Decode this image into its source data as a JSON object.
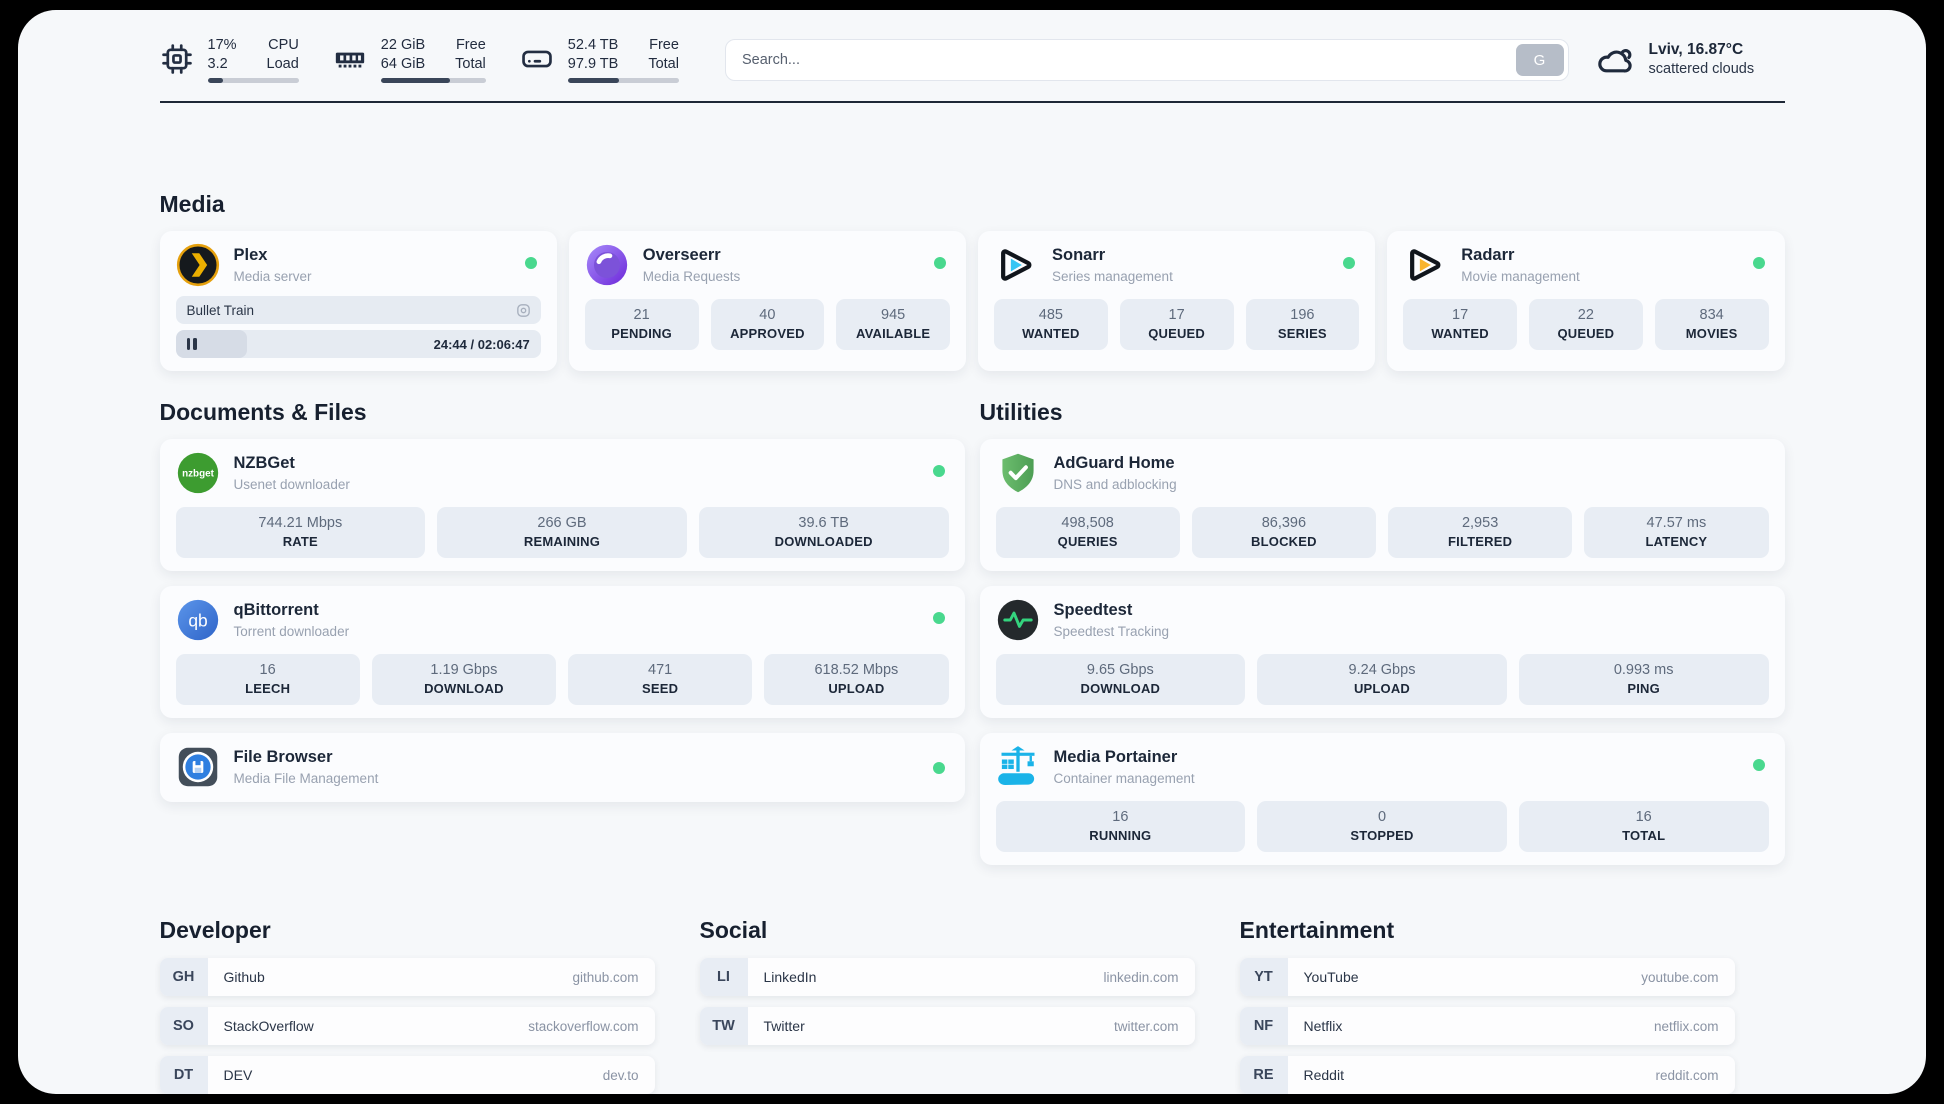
{
  "header": {
    "system_widgets": [
      {
        "icon": "cpu-icon",
        "col1": [
          "17%",
          "3.2"
        ],
        "col2": [
          "CPU",
          "Load"
        ],
        "progress_pct": 17
      },
      {
        "icon": "ram-icon",
        "col1": [
          "22 GiB",
          "64 GiB"
        ],
        "col2": [
          "Free",
          "Total"
        ],
        "progress_pct": 66
      },
      {
        "icon": "disk-icon",
        "col1": [
          "52.4 TB",
          "97.9 TB"
        ],
        "col2": [
          "Free",
          "Total"
        ],
        "progress_pct": 46
      }
    ],
    "search": {
      "placeholder": "Search...",
      "engine_button": "G"
    },
    "weather": {
      "location": "Lviv, 16.87°C",
      "condition": "scattered clouds"
    }
  },
  "sections": {
    "media": {
      "title": "Media",
      "cards": {
        "plex": {
          "name": "Plex",
          "description": "Media server",
          "online": true,
          "now_playing": {
            "title": "Bullet Train",
            "time": "24:44 / 02:06:47",
            "progress_pct": 19.5
          }
        },
        "overseerr": {
          "name": "Overseerr",
          "description": "Media Requests",
          "online": true,
          "stats": [
            {
              "value": "21",
              "label": "PENDING"
            },
            {
              "value": "40",
              "label": "APPROVED"
            },
            {
              "value": "945",
              "label": "AVAILABLE"
            }
          ]
        },
        "sonarr": {
          "name": "Sonarr",
          "description": "Series management",
          "online": true,
          "stats": [
            {
              "value": "485",
              "label": "WANTED"
            },
            {
              "value": "17",
              "label": "QUEUED"
            },
            {
              "value": "196",
              "label": "SERIES"
            }
          ]
        },
        "radarr": {
          "name": "Radarr",
          "description": "Movie management",
          "online": true,
          "stats": [
            {
              "value": "17",
              "label": "WANTED"
            },
            {
              "value": "22",
              "label": "QUEUED"
            },
            {
              "value": "834",
              "label": "MOVIES"
            }
          ]
        }
      }
    },
    "documents": {
      "title": "Documents & Files",
      "cards": {
        "nzbget": {
          "name": "NZBGet",
          "description": "Usenet downloader",
          "online": true,
          "stats": [
            {
              "value": "744.21 Mbps",
              "label": "RATE"
            },
            {
              "value": "266 GB",
              "label": "REMAINING"
            },
            {
              "value": "39.6 TB",
              "label": "DOWNLOADED"
            }
          ]
        },
        "qbittorrent": {
          "name": "qBittorrent",
          "description": "Torrent downloader",
          "online": true,
          "stats": [
            {
              "value": "16",
              "label": "LEECH"
            },
            {
              "value": "1.19 Gbps",
              "label": "DOWNLOAD"
            },
            {
              "value": "471",
              "label": "SEED"
            },
            {
              "value": "618.52 Mbps",
              "label": "UPLOAD"
            }
          ]
        },
        "filebrowser": {
          "name": "File Browser",
          "description": "Media File Management",
          "online": true
        }
      }
    },
    "utilities": {
      "title": "Utilities",
      "cards": {
        "adguard": {
          "name": "AdGuard Home",
          "description": "DNS and adblocking",
          "online": false,
          "stats": [
            {
              "value": "498,508",
              "label": "QUERIES"
            },
            {
              "value": "86,396",
              "label": "BLOCKED"
            },
            {
              "value": "2,953",
              "label": "FILTERED"
            },
            {
              "value": "47.57 ms",
              "label": "LATENCY"
            }
          ]
        },
        "speedtest": {
          "name": "Speedtest",
          "description": "Speedtest Tracking",
          "online": false,
          "stats": [
            {
              "value": "9.65 Gbps",
              "label": "DOWNLOAD"
            },
            {
              "value": "9.24 Gbps",
              "label": "UPLOAD"
            },
            {
              "value": "0.993 ms",
              "label": "PING"
            }
          ]
        },
        "portainer": {
          "name": "Media Portainer",
          "description": "Container management",
          "online": true,
          "stats": [
            {
              "value": "16",
              "label": "RUNNING"
            },
            {
              "value": "0",
              "label": "STOPPED"
            },
            {
              "value": "16",
              "label": "TOTAL"
            }
          ]
        }
      }
    }
  },
  "bookmarks": {
    "developer": {
      "title": "Developer",
      "links": [
        {
          "abbr": "GH",
          "name": "Github",
          "url": "github.com"
        },
        {
          "abbr": "SO",
          "name": "StackOverflow",
          "url": "stackoverflow.com"
        },
        {
          "abbr": "DT",
          "name": "DEV",
          "url": "dev.to"
        }
      ]
    },
    "social": {
      "title": "Social",
      "links": [
        {
          "abbr": "LI",
          "name": "LinkedIn",
          "url": "linkedin.com"
        },
        {
          "abbr": "TW",
          "name": "Twitter",
          "url": "twitter.com"
        }
      ]
    },
    "entertainment": {
      "title": "Entertainment",
      "links": [
        {
          "abbr": "YT",
          "name": "YouTube",
          "url": "youtube.com"
        },
        {
          "abbr": "NF",
          "name": "Netflix",
          "url": "netflix.com"
        },
        {
          "abbr": "RE",
          "name": "Reddit",
          "url": "reddit.com"
        }
      ]
    }
  },
  "colors": {
    "online_dot": "#49d88e",
    "divider": "#1e2836",
    "plex_amber": "#ebaf00",
    "sonarr_cyan": "#35c5f4",
    "radarr_yellow": "#f9b42d",
    "nzbget_green": "#3d9c30",
    "qbittorrent_blue": "#3f7edb",
    "adguard_green": "#5fae62",
    "speedtest_pulse": "#34d47e",
    "portainer_blue": "#1ab3e8"
  }
}
